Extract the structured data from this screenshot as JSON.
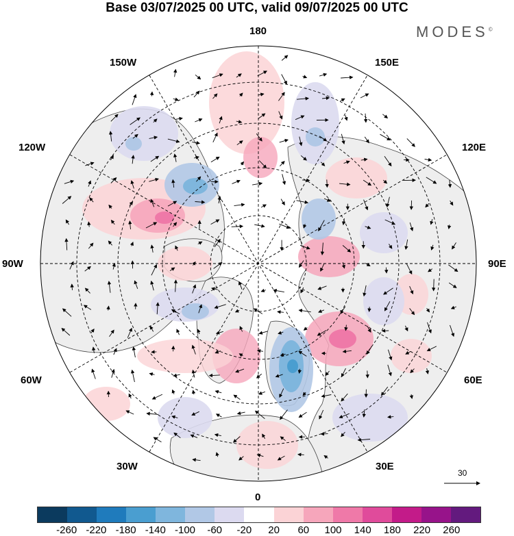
{
  "title": "Base 03/07/2025 00 UTC, valid 09/07/2025 00 UTC",
  "brand": "MODES",
  "brand_mark": "©",
  "longitude_labels": {
    "top": "180",
    "top_left": "150W",
    "top_right": "150E",
    "upper_left": "120W",
    "upper_right": "120E",
    "left": "90W",
    "right": "90E",
    "lower_left": "60W",
    "lower_right": "60E",
    "bottom_left": "30W",
    "bottom_right": "30E",
    "bottom": "0"
  },
  "reference_vector": "30",
  "colorbar": {
    "colors": [
      "#0b3a5e",
      "#11598f",
      "#1f7bbc",
      "#4a9ed0",
      "#7fb6dd",
      "#b1c8e6",
      "#dcdaf0",
      "#ffffff",
      "#fbd3d6",
      "#f6a6bb",
      "#ef79a8",
      "#e04b9b",
      "#c31b89",
      "#97138a",
      "#631a7e"
    ],
    "ticks": [
      "-260",
      "-220",
      "-180",
      "-140",
      "-100",
      "-60",
      "-20",
      "20",
      "60",
      "100",
      "140",
      "180",
      "220",
      "260"
    ]
  },
  "colors": {
    "land": "#eeeeee",
    "ocean": "#ffffff",
    "positive_light": "#fbd3d6",
    "positive_mid": "#f6a6bb",
    "positive_strong": "#ef79a8",
    "negative_light": "#dcdaf0",
    "negative_mid": "#b1c8e6",
    "negative_strong": "#4a9ed0"
  }
}
